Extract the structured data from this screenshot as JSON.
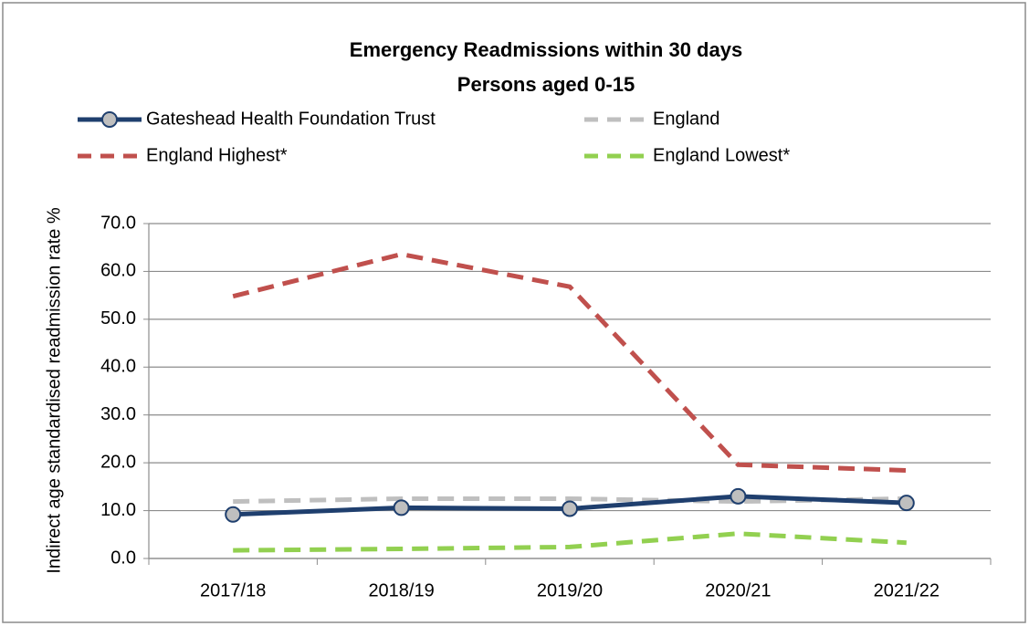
{
  "chart_data": {
    "type": "line",
    "title": "Emergency Readmissions within 30 days",
    "subtitle": "Persons aged 0-15",
    "y_label": "Indirect age standardised readmission rate  %",
    "categories": [
      "2017/18",
      "2018/19",
      "2019/20",
      "2020/21",
      "2021/22"
    ],
    "series": [
      {
        "name": "Gateshead Health Foundation Trust",
        "color": "#1f3f6e",
        "line_style": "solid",
        "marker": "circle",
        "values": [
          9.2,
          10.6,
          10.4,
          13.0,
          11.6
        ]
      },
      {
        "name": "England",
        "color": "#bfbfbf",
        "line_style": "dashed",
        "values": [
          11.9,
          12.5,
          12.5,
          11.9,
          12.5
        ]
      },
      {
        "name": "England Highest*",
        "color": "#c0504d",
        "line_style": "dashed",
        "values": [
          54.8,
          63.6,
          56.8,
          19.6,
          18.4
        ]
      },
      {
        "name": "England Lowest*",
        "color": "#92d050",
        "line_style": "dashed",
        "values": [
          1.7,
          2.0,
          2.4,
          5.2,
          3.3
        ]
      }
    ],
    "ylim": [
      0,
      70
    ],
    "yticks": [
      {
        "value": 0,
        "label": "0.0"
      },
      {
        "value": 10,
        "label": "10.0"
      },
      {
        "value": 20,
        "label": "20.0"
      },
      {
        "value": 30,
        "label": "30.0"
      },
      {
        "value": 40,
        "label": "40.0"
      },
      {
        "value": 50,
        "label": "50.0"
      },
      {
        "value": 60,
        "label": "60.0"
      },
      {
        "value": 70,
        "label": "70.0"
      }
    ],
    "grid": true
  }
}
